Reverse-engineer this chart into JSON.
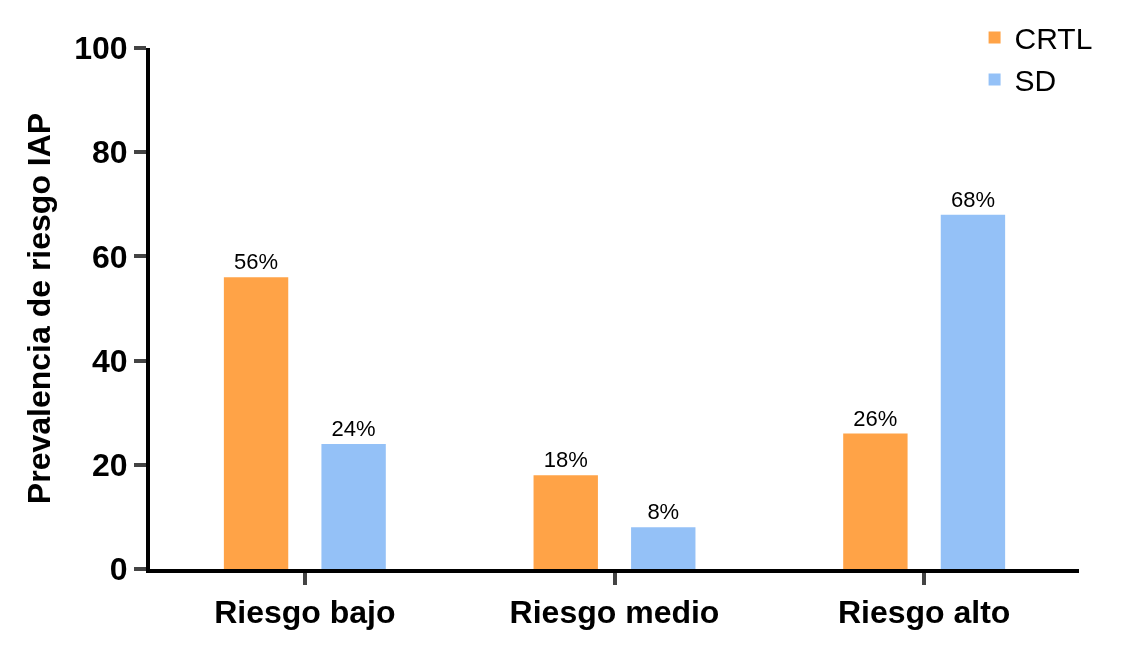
{
  "chart_data": {
    "type": "bar",
    "ylabel": "Prevalencia de riesgo IAP",
    "categories": [
      "Riesgo bajo",
      "Riesgo medio",
      "Riesgo alto"
    ],
    "series": [
      {
        "name": "CRTL",
        "color": "#ffa347",
        "values": [
          56,
          18,
          26
        ],
        "value_labels": [
          "56%",
          "18%",
          "26%"
        ]
      },
      {
        "name": "SD",
        "color": "#94c1f7",
        "values": [
          24,
          8,
          68
        ],
        "value_labels": [
          "24%",
          "8%",
          "68%"
        ]
      }
    ],
    "ylim": [
      0,
      100
    ],
    "yticks": [
      0,
      20,
      40,
      60,
      80,
      100
    ],
    "legend": "top right"
  }
}
